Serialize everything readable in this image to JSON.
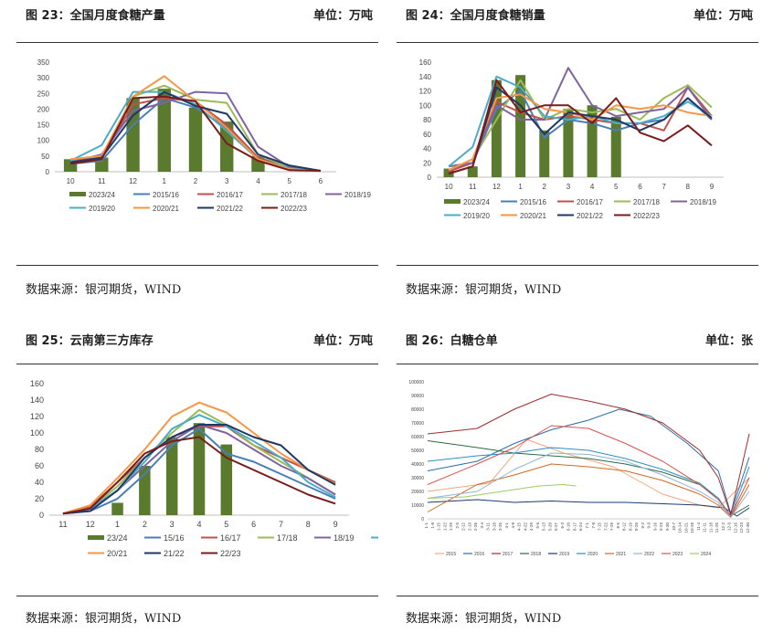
{
  "panels": [
    {
      "title": "图 23：全国月度食糖产量",
      "unit": "单位：万吨",
      "source": "数据来源：银河期货，WIND"
    },
    {
      "title": "图 24：全国月度食糖销量",
      "unit": "单位：万吨",
      "source": "数据来源：银河期货，WIND"
    },
    {
      "title": "图 25：云南第三方库存",
      "unit": "单位：万吨",
      "source": "数据来源：银河期货，WIND"
    },
    {
      "title": "图 26：白糖仓单",
      "unit": "单位：张",
      "source": "数据来源：银河期货，WIND"
    }
  ],
  "chart_data": [
    {
      "type": "bar",
      "categories": [
        "10",
        "11",
        "12",
        "1",
        "2",
        "3",
        "4",
        "5",
        "6"
      ],
      "ylim": [
        0,
        350
      ],
      "yticks": [
        0,
        50,
        100,
        150,
        200,
        250,
        300,
        350
      ],
      "bar_color": "#5a7a2e",
      "series": [
        {
          "name": "2023/24",
          "type": "bar",
          "color": "#5a7a2e",
          "values": [
            40,
            45,
            235,
            265,
            205,
            160,
            50,
            null,
            null
          ]
        },
        {
          "name": "2015/16",
          "type": "line",
          "color": "#4a7eb8",
          "values": [
            25,
            35,
            150,
            235,
            205,
            140,
            45,
            15,
            3
          ]
        },
        {
          "name": "2016/17",
          "type": "line",
          "color": "#c0504d",
          "values": [
            38,
            45,
            215,
            235,
            225,
            150,
            45,
            10,
            3
          ]
        },
        {
          "name": "2017/18",
          "type": "line",
          "color": "#9bbb59",
          "values": [
            38,
            50,
            240,
            275,
            230,
            220,
            55,
            12,
            3
          ]
        },
        {
          "name": "2018/19",
          "type": "line",
          "color": "#8064a2",
          "values": [
            30,
            55,
            195,
            220,
            255,
            250,
            80,
            15,
            3
          ]
        },
        {
          "name": "2019/20",
          "type": "line",
          "color": "#4bacc6",
          "values": [
            35,
            85,
            255,
            255,
            215,
            130,
            40,
            10,
            3
          ]
        },
        {
          "name": "2020/21",
          "type": "line",
          "color": "#f79646",
          "values": [
            40,
            50,
            240,
            305,
            225,
            140,
            40,
            8,
            3
          ]
        },
        {
          "name": "2021/22",
          "type": "line",
          "color": "#1f3864",
          "values": [
            30,
            45,
            180,
            255,
            210,
            185,
            55,
            20,
            3
          ]
        },
        {
          "name": "2022/23",
          "type": "line",
          "color": "#7b1c1c",
          "values": [
            25,
            40,
            235,
            240,
            225,
            90,
            35,
            5,
            3
          ]
        }
      ]
    },
    {
      "type": "bar",
      "categories": [
        "10",
        "11",
        "12",
        "1",
        "2",
        "3",
        "4",
        "5",
        "6",
        "7",
        "8",
        "9"
      ],
      "ylim": [
        0,
        160
      ],
      "yticks": [
        0,
        20,
        40,
        60,
        80,
        100,
        120,
        140,
        160
      ],
      "series": [
        {
          "name": "2023/24",
          "type": "bar",
          "color": "#5a7a2e",
          "values": [
            12,
            15,
            135,
            142,
            65,
            95,
            100,
            84,
            null,
            null,
            null,
            null
          ]
        },
        {
          "name": "2015/16",
          "type": "line",
          "color": "#4a7eb8",
          "values": [
            10,
            20,
            95,
            120,
            55,
            80,
            75,
            65,
            75,
            80,
            110,
            80
          ]
        },
        {
          "name": "2016/17",
          "type": "line",
          "color": "#c0504d",
          "values": [
            8,
            20,
            105,
            90,
            80,
            85,
            80,
            75,
            75,
            65,
            125,
            85
          ]
        },
        {
          "name": "2017/18",
          "type": "line",
          "color": "#9bbb59",
          "values": [
            10,
            25,
            80,
            135,
            80,
            95,
            90,
            95,
            80,
            110,
            128,
            97
          ]
        },
        {
          "name": "2018/19",
          "type": "line",
          "color": "#8064a2",
          "values": [
            15,
            20,
            100,
            80,
            80,
            152,
            100,
            85,
            90,
            95,
            125,
            80
          ]
        },
        {
          "name": "2019/20",
          "type": "line",
          "color": "#4bacc6",
          "values": [
            15,
            42,
            140,
            125,
            85,
            80,
            85,
            75,
            75,
            85,
            105,
            85
          ]
        },
        {
          "name": "2020/21",
          "type": "line",
          "color": "#f79646",
          "values": [
            10,
            25,
            110,
            115,
            95,
            90,
            80,
            100,
            95,
            100,
            90,
            85
          ]
        },
        {
          "name": "2021/22",
          "type": "line",
          "color": "#1f3864",
          "values": [
            5,
            15,
            125,
            100,
            60,
            90,
            85,
            80,
            65,
            80,
            110,
            82
          ]
        },
        {
          "name": "2022/23",
          "type": "line",
          "color": "#7b1c1c",
          "values": [
            5,
            15,
            135,
            90,
            100,
            100,
            75,
            110,
            62,
            50,
            72,
            44
          ]
        }
      ]
    },
    {
      "type": "bar",
      "categories": [
        "11",
        "12",
        "1",
        "2",
        "3",
        "4",
        "5",
        "6",
        "7",
        "8",
        "9"
      ],
      "ylim": [
        0,
        160
      ],
      "yticks": [
        0,
        20,
        40,
        60,
        80,
        100,
        120,
        140,
        160
      ],
      "series": [
        {
          "name": "23/24",
          "type": "bar",
          "color": "#5a7a2e",
          "values": [
            null,
            null,
            15,
            60,
            95,
            112,
            86,
            null,
            null,
            null,
            null
          ]
        },
        {
          "name": "15/16",
          "type": "line",
          "color": "#4a7eb8",
          "values": [
            2,
            5,
            20,
            50,
            85,
            105,
            75,
            65,
            50,
            35,
            20
          ]
        },
        {
          "name": "16/17",
          "type": "line",
          "color": "#c0504d",
          "values": [
            2,
            10,
            40,
            70,
            95,
            108,
            108,
            85,
            70,
            55,
            40
          ]
        },
        {
          "name": "17/18",
          "type": "line",
          "color": "#9bbb59",
          "values": [
            2,
            8,
            35,
            70,
            100,
            128,
            110,
            85,
            65,
            45,
            25
          ]
        },
        {
          "name": "18/19",
          "type": "line",
          "color": "#8064a2",
          "values": [
            2,
            8,
            30,
            60,
            90,
            110,
            100,
            80,
            60,
            45,
            25
          ]
        },
        {
          "name": "19/20",
          "type": "line",
          "color": "#4bacc6",
          "values": [
            2,
            8,
            30,
            65,
            105,
            122,
            108,
            90,
            70,
            40,
            22
          ]
        },
        {
          "name": "20/21",
          "type": "line",
          "color": "#f79646",
          "values": [
            2,
            12,
            45,
            80,
            120,
            137,
            125,
            100,
            75,
            55,
            38
          ]
        },
        {
          "name": "21/22",
          "type": "line",
          "color": "#1f3864",
          "values": [
            2,
            5,
            30,
            70,
            95,
            110,
            110,
            95,
            85,
            55,
            37
          ]
        },
        {
          "name": "22/23",
          "type": "line",
          "color": "#7b1c1c",
          "values": [
            2,
            8,
            40,
            75,
            90,
            95,
            70,
            55,
            40,
            25,
            14
          ]
        }
      ]
    },
    {
      "type": "line",
      "ylim": [
        0,
        100000
      ],
      "yticks": [
        0,
        10000,
        20000,
        30000,
        40000,
        50000,
        60000,
        70000,
        80000,
        90000,
        100000
      ],
      "x": [
        "1-1",
        "1-8",
        "1-15",
        "1-22",
        "1-29",
        "2-5",
        "2-12",
        "2-19",
        "2-26",
        "3-4",
        "3-11",
        "3-18",
        "3-25",
        "4-1",
        "4-8",
        "4-15",
        "4-22",
        "4-29",
        "5-6",
        "5-13",
        "5-20",
        "5-27",
        "6-3",
        "6-10",
        "6-17",
        "6-24",
        "7-1",
        "7-8",
        "7-15",
        "7-22",
        "7-29",
        "8-5",
        "8-12",
        "8-19",
        "8-26",
        "9-2",
        "9-9",
        "9-16",
        "9-23",
        "9-30",
        "10-7",
        "10-14",
        "10-21",
        "10-28",
        "11-4",
        "11-11",
        "11-18",
        "11-25",
        "12-2",
        "12-9",
        "12-16",
        "12-23",
        "12-30"
      ],
      "series": [
        {
          "name": "2015",
          "color": "#f4a582",
          "points": [
            [
              0,
              20000
            ],
            [
              10,
              26000
            ],
            [
              16,
              58000
            ],
            [
              22,
              48000
            ],
            [
              30,
              38000
            ],
            [
              38,
              18000
            ],
            [
              44,
              10000
            ],
            [
              47,
              8000
            ],
            [
              52,
              30000
            ]
          ]
        },
        {
          "name": "2016",
          "color": "#2c6fa8",
          "points": [
            [
              0,
              35000
            ],
            [
              8,
              42000
            ],
            [
              14,
              55000
            ],
            [
              20,
              65000
            ],
            [
              26,
              72000
            ],
            [
              31,
              80000
            ],
            [
              36,
              75000
            ],
            [
              42,
              55000
            ],
            [
              47,
              35000
            ],
            [
              49,
              4000
            ],
            [
              52,
              45000
            ]
          ]
        },
        {
          "name": "2017",
          "color": "#a02c2c",
          "points": [
            [
              0,
              62000
            ],
            [
              8,
              66000
            ],
            [
              14,
              80000
            ],
            [
              20,
              91000
            ],
            [
              26,
              86000
            ],
            [
              32,
              80000
            ],
            [
              38,
              70000
            ],
            [
              44,
              50000
            ],
            [
              47,
              30000
            ],
            [
              49,
              3000
            ],
            [
              52,
              62000
            ]
          ]
        },
        {
          "name": "2018",
          "color": "#2f6a44",
          "points": [
            [
              0,
              57000
            ],
            [
              8,
              52000
            ],
            [
              14,
              48000
            ],
            [
              20,
              46000
            ],
            [
              26,
              44000
            ],
            [
              32,
              40000
            ],
            [
              38,
              34000
            ],
            [
              44,
              25000
            ],
            [
              47,
              15000
            ],
            [
              49,
              2000
            ],
            [
              52,
              10000
            ]
          ]
        },
        {
          "name": "2019",
          "color": "#1f3a6e",
          "points": [
            [
              0,
              12000
            ],
            [
              8,
              14000
            ],
            [
              14,
              12000
            ],
            [
              20,
              13000
            ],
            [
              26,
              12000
            ],
            [
              32,
              12000
            ],
            [
              38,
              11000
            ],
            [
              44,
              10000
            ],
            [
              48,
              8000
            ],
            [
              50,
              2000
            ],
            [
              52,
              8000
            ]
          ]
        },
        {
          "name": "2020",
          "color": "#2a8fbf",
          "points": [
            [
              0,
              42000
            ],
            [
              8,
              46000
            ],
            [
              14,
              48000
            ],
            [
              20,
              52000
            ],
            [
              26,
              50000
            ],
            [
              32,
              44000
            ],
            [
              38,
              36000
            ],
            [
              44,
              26000
            ],
            [
              47,
              15000
            ],
            [
              49,
              2000
            ],
            [
              52,
              38000
            ]
          ]
        },
        {
          "name": "2021",
          "color": "#d2691e",
          "points": [
            [
              0,
              5000
            ],
            [
              8,
              25000
            ],
            [
              14,
              32000
            ],
            [
              20,
              40000
            ],
            [
              26,
              38000
            ],
            [
              32,
              35000
            ],
            [
              38,
              28000
            ],
            [
              44,
              18000
            ],
            [
              47,
              10000
            ],
            [
              49,
              1000
            ],
            [
              52,
              25000
            ]
          ]
        },
        {
          "name": "2022",
          "color": "#8fb3d9",
          "points": [
            [
              0,
              15000
            ],
            [
              8,
              20000
            ],
            [
              14,
              36000
            ],
            [
              20,
              48000
            ],
            [
              26,
              47000
            ],
            [
              32,
              42000
            ],
            [
              38,
              32000
            ],
            [
              44,
              20000
            ],
            [
              47,
              12000
            ],
            [
              49,
              1000
            ],
            [
              52,
              20000
            ]
          ]
        },
        {
          "name": "2023",
          "color": "#d9534f",
          "points": [
            [
              0,
              25000
            ],
            [
              8,
              40000
            ],
            [
              14,
              52000
            ],
            [
              20,
              68000
            ],
            [
              26,
              66000
            ],
            [
              32,
              55000
            ],
            [
              38,
              42000
            ],
            [
              44,
              25000
            ],
            [
              47,
              14000
            ],
            [
              49,
              2000
            ],
            [
              52,
              30000
            ]
          ]
        },
        {
          "name": "2024",
          "color": "#9ccc65",
          "points": [
            [
              0,
              15000
            ],
            [
              6,
              16000
            ],
            [
              12,
              20000
            ],
            [
              18,
              24000
            ],
            [
              22,
              25000
            ],
            [
              24,
              24000
            ]
          ]
        }
      ]
    }
  ]
}
